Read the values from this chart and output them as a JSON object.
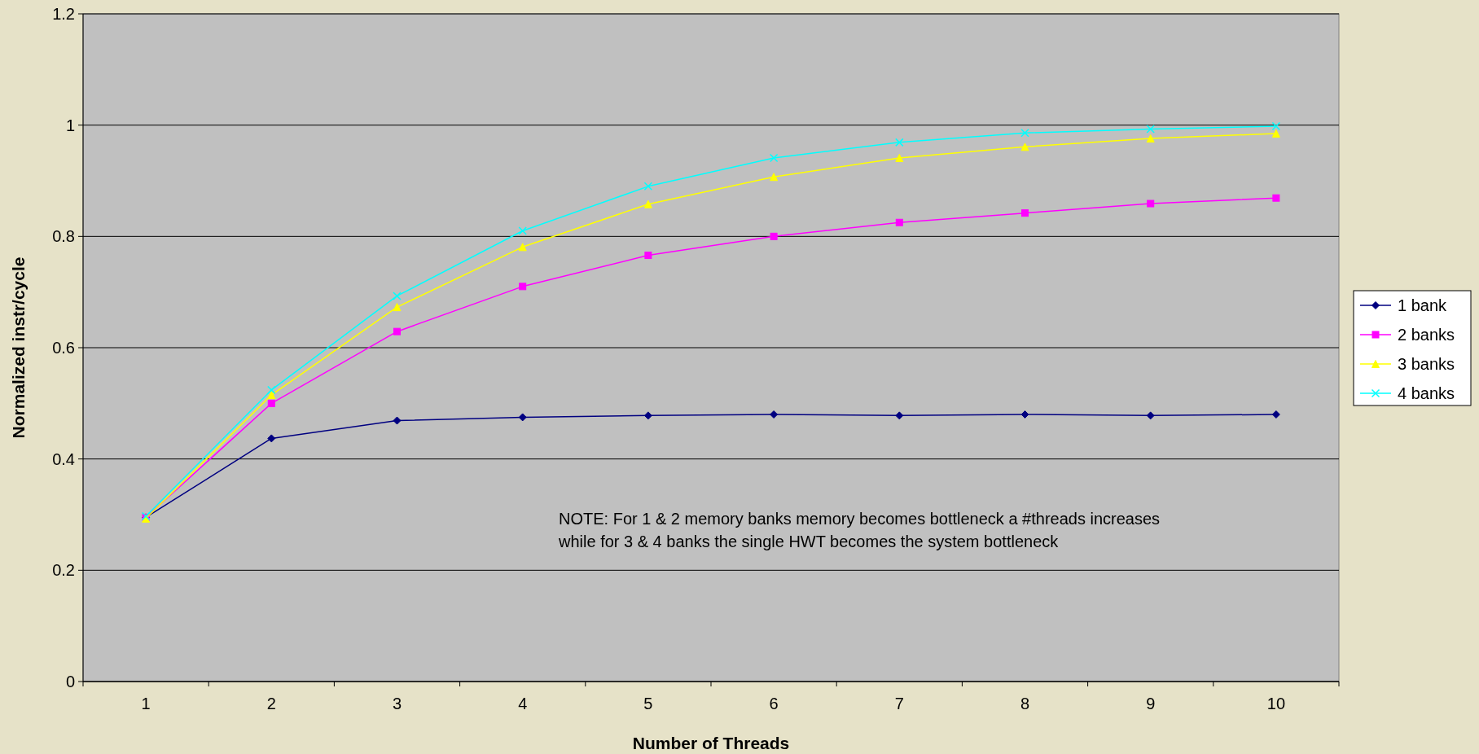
{
  "chart_data": {
    "type": "line",
    "xlabel": "Number of Threads",
    "ylabel": "Normalized instr/cycle",
    "categories": [
      "1",
      "2",
      "3",
      "4",
      "5",
      "6",
      "7",
      "8",
      "9",
      "10"
    ],
    "series": [
      {
        "name": "1 bank",
        "color": "#000080",
        "marker": "diamond",
        "values": [
          0.295,
          0.437,
          0.469,
          0.475,
          0.478,
          0.48,
          0.478,
          0.48,
          0.478,
          0.48
        ]
      },
      {
        "name": "2 banks",
        "color": "#ff00ff",
        "marker": "square",
        "values": [
          0.295,
          0.5,
          0.629,
          0.71,
          0.766,
          0.8,
          0.825,
          0.842,
          0.859,
          0.869
        ]
      },
      {
        "name": "3 banks",
        "color": "#ffff00",
        "marker": "triangle",
        "values": [
          0.293,
          0.515,
          0.673,
          0.781,
          0.858,
          0.907,
          0.941,
          0.961,
          0.976,
          0.985
        ]
      },
      {
        "name": "4 banks",
        "color": "#00ffff",
        "marker": "cross",
        "values": [
          0.297,
          0.524,
          0.693,
          0.81,
          0.89,
          0.941,
          0.969,
          0.986,
          0.993,
          0.998
        ]
      }
    ],
    "ylim": [
      0,
      1.2
    ],
    "yticks": [
      0,
      0.2,
      0.4,
      0.6,
      0.8,
      1,
      1.2
    ],
    "grid": "y",
    "legend": "right",
    "annotations": [
      "NOTE: For 1 & 2 memory banks memory becomes bottleneck a #threads increases\nwhile for 3 & 4 banks the single HWT becomes the system bottleneck"
    ]
  }
}
